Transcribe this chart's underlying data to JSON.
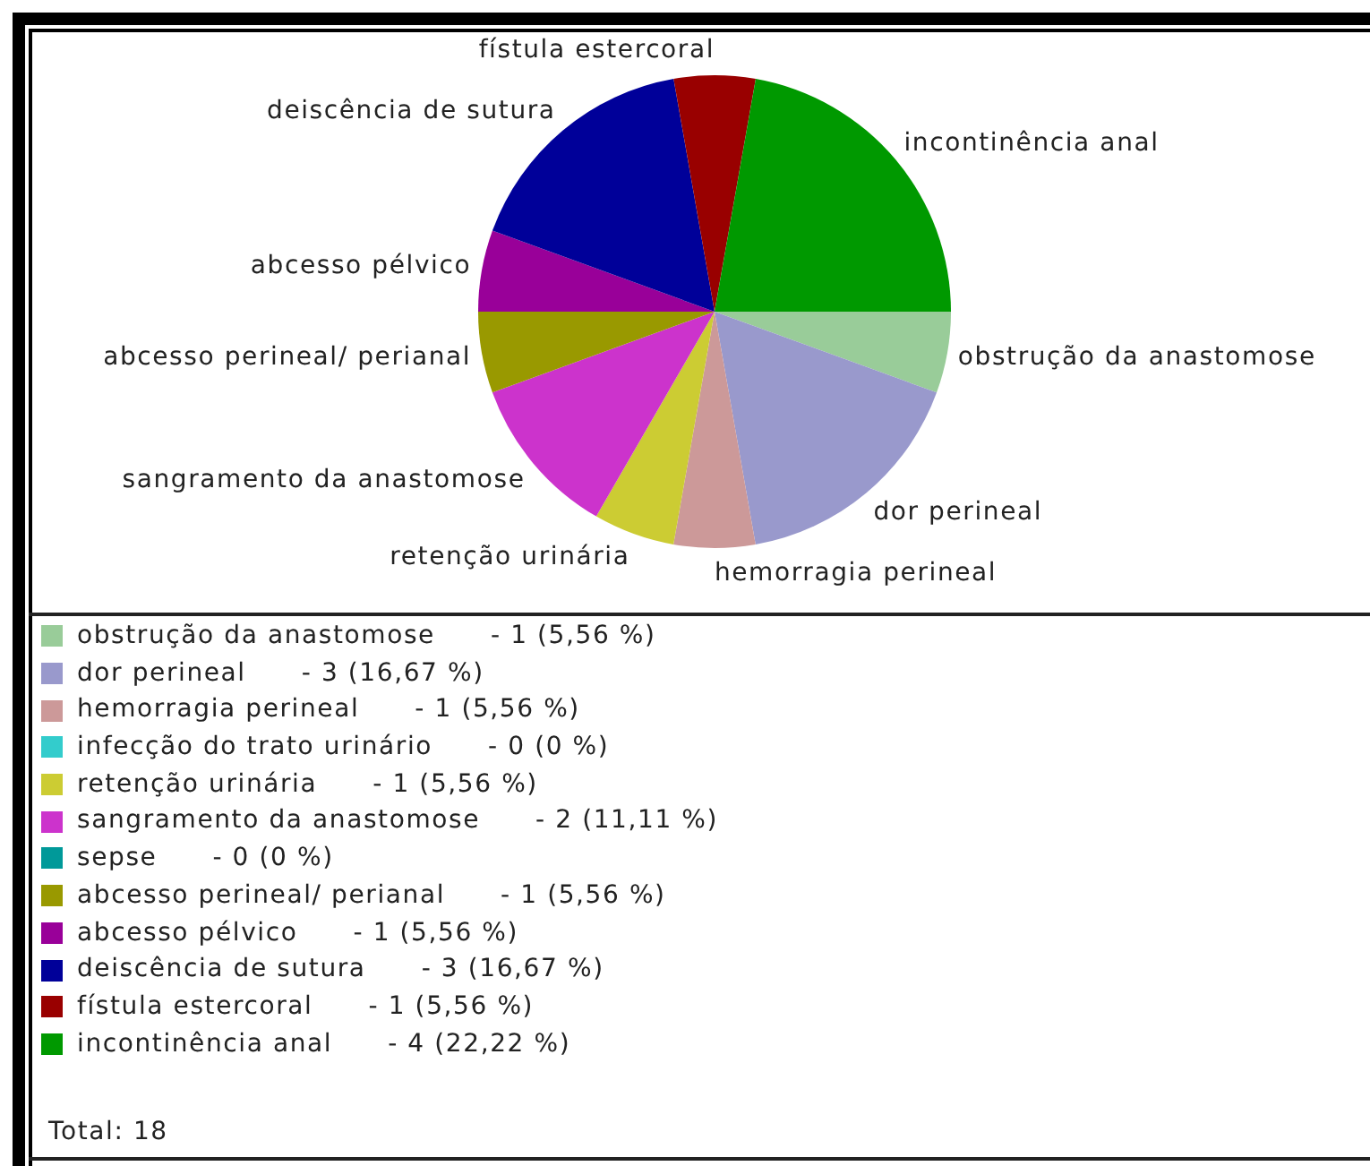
{
  "chart_data": {
    "type": "pie",
    "categories": [
      "obstrução da anastomose",
      "dor perineal",
      "hemorragia perineal",
      "infecção do trato urinário",
      "retenção urinária",
      "sangramento da anastomose",
      "sepse",
      "abcesso perineal/ perianal",
      "abcesso pélvico",
      "deiscência de sutura",
      "fístula estercoral",
      "incontinência anal"
    ],
    "values": [
      5.56,
      16.67,
      5.56,
      0,
      5.56,
      11.11,
      0,
      5.56,
      5.56,
      16.67,
      5.56,
      22.22
    ],
    "colors": [
      "#99cc99",
      "#9999cc",
      "#cc9999",
      "#33cccc",
      "#cccc33",
      "#cc33cc",
      "#009999",
      "#999900",
      "#990099",
      "#000099",
      "#990000",
      "#009900"
    ],
    "value_labels": [
      "- 1 (5,56 %)",
      "- 3 (16,67 %)",
      "- 1 (5,56 %)",
      "- 0 (0 %)",
      "- 1 (5,56 %)",
      "- 2 (11,11 %)",
      "- 0 (0 %)",
      "- 1 (5,56 %)",
      "- 1 (5,56 %)",
      "- 3 (16,67 %)",
      "- 1 (5,56 %)",
      "- 4 (22,22 %)"
    ],
    "legend": "bottom",
    "annotations": [
      "Total: 18"
    ]
  }
}
